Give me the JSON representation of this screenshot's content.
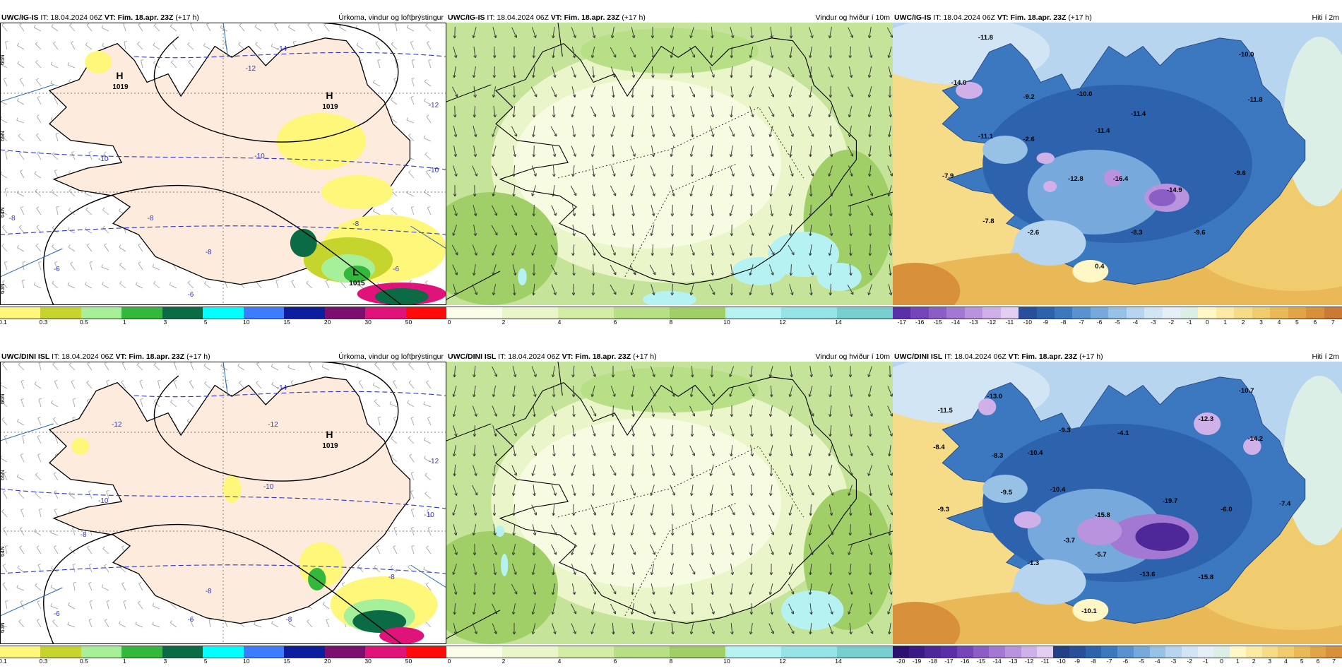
{
  "rows": [
    {
      "model": "UWC/IG-IS",
      "panels": [
        {
          "type": "precip",
          "it_label": "IT:",
          "it": "18.04.2024 06Z",
          "vt_label": "VT:",
          "vt": "Fim. 18.apr. 23Z",
          "lead": "(+17 h)",
          "right": "Úrkoma, vindur og loftþrýstingur",
          "highs": [
            {
              "label": "H",
              "value": "1019",
              "fx": 0.26,
              "fy": 0.2
            },
            {
              "label": "H",
              "value": "1019",
              "fx": 0.73,
              "fy": 0.27
            }
          ],
          "isobars": [
            {
              "v": "-14",
              "fx": 0.62,
              "fy": 0.1
            },
            {
              "v": "-12",
              "fx": 0.55,
              "fy": 0.17
            },
            {
              "v": "-10",
              "fx": 0.57,
              "fy": 0.48
            },
            {
              "v": "-12",
              "fx": 0.96,
              "fy": 0.3
            },
            {
              "v": "-10",
              "fx": 0.96,
              "fy": 0.53
            },
            {
              "v": "-10",
              "fx": 0.22,
              "fy": 0.49
            },
            {
              "v": "-8",
              "fx": 0.02,
              "fy": 0.7
            },
            {
              "v": "-8",
              "fx": 0.33,
              "fy": 0.7
            },
            {
              "v": "-8",
              "fx": 0.46,
              "fy": 0.82
            },
            {
              "v": "-6",
              "fx": 0.12,
              "fy": 0.88
            },
            {
              "v": "-6",
              "fx": 0.42,
              "fy": 0.97
            },
            {
              "v": "-8",
              "fx": 0.79,
              "fy": 0.72
            },
            {
              "v": "-6",
              "fx": 0.88,
              "fy": 0.88
            }
          ],
          "lows": [
            {
              "label": "L",
              "value": "1015",
              "fx": 0.79,
              "fy": 0.93
            }
          ]
        },
        {
          "type": "wind",
          "it_label": "IT:",
          "it": "18.04.2024 06Z",
          "vt_label": "VT:",
          "vt": "Fim. 18.apr. 23Z",
          "lead": "(+17 h)",
          "right": "Vindur og hviður í 10m"
        },
        {
          "type": "temp",
          "it_label": "IT:",
          "it": "18.04.2024 06Z",
          "vt_label": "VT:",
          "vt": "Fim. 18.apr. 23Z",
          "lead": "(+17 h)",
          "right": "Hiti í 2m",
          "values": [
            {
              "v": "-11.8",
              "fx": 0.19,
              "fy": 0.06
            },
            {
              "v": "-14.0",
              "fx": 0.13,
              "fy": 0.22
            },
            {
              "v": "-9.2",
              "fx": 0.29,
              "fy": 0.27
            },
            {
              "v": "-10.0",
              "fx": 0.41,
              "fy": 0.26
            },
            {
              "v": "-11.1",
              "fx": 0.19,
              "fy": 0.41
            },
            {
              "v": "-2.6",
              "fx": 0.29,
              "fy": 0.42
            },
            {
              "v": "-11.4",
              "fx": 0.45,
              "fy": 0.39
            },
            {
              "v": "-11.4",
              "fx": 0.53,
              "fy": 0.33
            },
            {
              "v": "-7.9",
              "fx": 0.11,
              "fy": 0.55
            },
            {
              "v": "-12.8",
              "fx": 0.39,
              "fy": 0.56
            },
            {
              "v": "-16.4",
              "fx": 0.49,
              "fy": 0.56
            },
            {
              "v": "-14.9",
              "fx": 0.61,
              "fy": 0.6
            },
            {
              "v": "-9.6",
              "fx": 0.76,
              "fy": 0.54
            },
            {
              "v": "-10.0",
              "fx": 0.77,
              "fy": 0.12
            },
            {
              "v": "-11.8",
              "fx": 0.79,
              "fy": 0.28
            },
            {
              "v": "-7.8",
              "fx": 0.2,
              "fy": 0.71
            },
            {
              "v": "-2.6",
              "fx": 0.3,
              "fy": 0.75
            },
            {
              "v": "-8.3",
              "fx": 0.53,
              "fy": 0.75
            },
            {
              "v": "-9.6",
              "fx": 0.67,
              "fy": 0.75
            },
            {
              "v": "0.4",
              "fx": 0.45,
              "fy": 0.87
            }
          ]
        }
      ]
    },
    {
      "model": "UWC/DINI ISL",
      "panels": [
        {
          "type": "precip",
          "it_label": "IT:",
          "it": "18.04.2024 06Z",
          "vt_label": "VT:",
          "vt": "Fim. 18.apr. 23Z",
          "lead": "(+17 h)",
          "right": "Úrkoma, vindur og loftþrýstingur",
          "highs": [
            {
              "label": "H",
              "value": "1019",
              "fx": 0.73,
              "fy": 0.27
            }
          ],
          "isobars": [
            {
              "v": "-14",
              "fx": 0.62,
              "fy": 0.1
            },
            {
              "v": "-12",
              "fx": 0.25,
              "fy": 0.23
            },
            {
              "v": "-12",
              "fx": 0.6,
              "fy": 0.23
            },
            {
              "v": "-10",
              "fx": 0.59,
              "fy": 0.45
            },
            {
              "v": "-10",
              "fx": 0.22,
              "fy": 0.5
            },
            {
              "v": "-12",
              "fx": 0.96,
              "fy": 0.36
            },
            {
              "v": "-10",
              "fx": 0.95,
              "fy": 0.55
            },
            {
              "v": "-8",
              "fx": 0.18,
              "fy": 0.62
            },
            {
              "v": "-8",
              "fx": 0.46,
              "fy": 0.82
            },
            {
              "v": "-6",
              "fx": 0.12,
              "fy": 0.9
            },
            {
              "v": "-6",
              "fx": 0.42,
              "fy": 0.92
            },
            {
              "v": "-8",
              "fx": 0.64,
              "fy": 0.92
            },
            {
              "v": "-8",
              "fx": 0.87,
              "fy": 0.77
            }
          ],
          "lows": []
        },
        {
          "type": "wind",
          "it_label": "IT:",
          "it": "18.04.2024 06Z",
          "vt_label": "VT:",
          "vt": "Fim. 18.apr. 23Z",
          "lead": "(+17 h)",
          "right": "Vindur og hviður í 10m"
        },
        {
          "type": "temp",
          "it_label": "IT:",
          "it": "18.04.2024 06Z",
          "vt_label": "VT:",
          "vt": "Fim. 18.apr. 23Z",
          "lead": "(+17 h)",
          "right": "Hiti í 2m",
          "values": [
            {
              "v": "-13.0",
              "fx": 0.21,
              "fy": 0.13
            },
            {
              "v": "-11.5",
              "fx": 0.1,
              "fy": 0.18
            },
            {
              "v": "-8.4",
              "fx": 0.09,
              "fy": 0.31
            },
            {
              "v": "-8.3",
              "fx": 0.22,
              "fy": 0.34
            },
            {
              "v": "-9.3",
              "fx": 0.37,
              "fy": 0.25
            },
            {
              "v": "-4.1",
              "fx": 0.5,
              "fy": 0.26
            },
            {
              "v": "-10.4",
              "fx": 0.3,
              "fy": 0.33
            },
            {
              "v": "-12.3",
              "fx": 0.68,
              "fy": 0.21
            },
            {
              "v": "-14.2",
              "fx": 0.79,
              "fy": 0.28
            },
            {
              "v": "-10.7",
              "fx": 0.77,
              "fy": 0.11
            },
            {
              "v": "-9.5",
              "fx": 0.24,
              "fy": 0.47
            },
            {
              "v": "-10.4",
              "fx": 0.35,
              "fy": 0.46
            },
            {
              "v": "-9.3",
              "fx": 0.1,
              "fy": 0.53
            },
            {
              "v": "-19.7",
              "fx": 0.6,
              "fy": 0.5
            },
            {
              "v": "-6.0",
              "fx": 0.73,
              "fy": 0.53
            },
            {
              "v": "-7.4",
              "fx": 0.86,
              "fy": 0.51
            },
            {
              "v": "-15.8",
              "fx": 0.45,
              "fy": 0.55
            },
            {
              "v": "-3.7",
              "fx": 0.38,
              "fy": 0.64
            },
            {
              "v": "-5.7",
              "fx": 0.45,
              "fy": 0.69
            },
            {
              "v": "-1.3",
              "fx": 0.3,
              "fy": 0.72
            },
            {
              "v": "-13.6",
              "fx": 0.55,
              "fy": 0.76
            },
            {
              "v": "-15.8",
              "fx": 0.68,
              "fy": 0.77
            },
            {
              "v": "-10.1",
              "fx": 0.42,
              "fy": 0.89
            }
          ]
        }
      ]
    }
  ],
  "legends": {
    "precip": {
      "ticks": [
        "0.1",
        "0.3",
        "0.5",
        "1",
        "3",
        "5",
        "10",
        "15",
        "20",
        "30",
        "50"
      ],
      "colors": [
        "#fff77a",
        "#c6d52e",
        "#a7f09a",
        "#33b83c",
        "#0b6b45",
        "#00ffff",
        "#3e7cff",
        "#0b1f9e",
        "#7a0f6f",
        "#e0137b",
        "#ff0a0a"
      ]
    },
    "wind": {
      "ticks": [
        "0",
        "2",
        "4",
        "6",
        "8",
        "10",
        "12",
        "14"
      ],
      "colors": [
        "#fbfde9",
        "#eaf6c9",
        "#d3eca6",
        "#b7df86",
        "#9fcf66",
        "#b7f2f2",
        "#96e3e6",
        "#78cfd0"
      ]
    },
    "temp_row1": {
      "ticks": [
        "-17",
        "-16",
        "-15",
        "-14",
        "-13",
        "-12",
        "-11",
        "-10",
        "-9",
        "-8",
        "-7",
        "-6",
        "-5",
        "-4",
        "-3",
        "-2",
        "-1",
        "0",
        "1",
        "2",
        "3",
        "4",
        "5",
        "6",
        "7"
      ],
      "colors": [
        "#5b2fa8",
        "#7345b8",
        "#8b5ec6",
        "#a278d3",
        "#b993dd",
        "#cfb0e8",
        "#e4cef2",
        "#2a4f9a",
        "#2d63ad",
        "#3c78bf",
        "#5a91cf",
        "#78a9dc",
        "#98c1e6",
        "#b7d5ee",
        "#d2e5f4",
        "#e6eff8",
        "#dcefe6",
        "#fff7c6",
        "#fbeaa6",
        "#f6dc88",
        "#f0cc6e",
        "#e9b957",
        "#e1a546",
        "#d8903b",
        "#cc7a33"
      ]
    },
    "temp_row2": {
      "ticks": [
        "-20",
        "-19",
        "-18",
        "-17",
        "-16",
        "-15",
        "-14",
        "-13",
        "-12",
        "-11",
        "-10",
        "-9",
        "-8",
        "-7",
        "-6",
        "-5",
        "-4",
        "-3",
        "-2",
        "-1",
        "0",
        "1",
        "2",
        "3",
        "4",
        "5",
        "6",
        "7"
      ],
      "colors": [
        "#2c0f6e",
        "#3c1a85",
        "#4e2898",
        "#5b2fa8",
        "#7345b8",
        "#8b5ec6",
        "#a278d3",
        "#b993dd",
        "#cfb0e8",
        "#e4cef2",
        "#223f88",
        "#2a4f9a",
        "#2d63ad",
        "#3c78bf",
        "#5a91cf",
        "#78a9dc",
        "#98c1e6",
        "#b7d5ee",
        "#d2e5f4",
        "#e6eff8",
        "#dcefe6",
        "#fff7c6",
        "#fbeaa6",
        "#f6dc88",
        "#f0cc6e",
        "#e9b957",
        "#e1a546",
        "#d8903b"
      ]
    }
  },
  "lat_labels": [
    "66N",
    "65N",
    "64N",
    "63N"
  ]
}
